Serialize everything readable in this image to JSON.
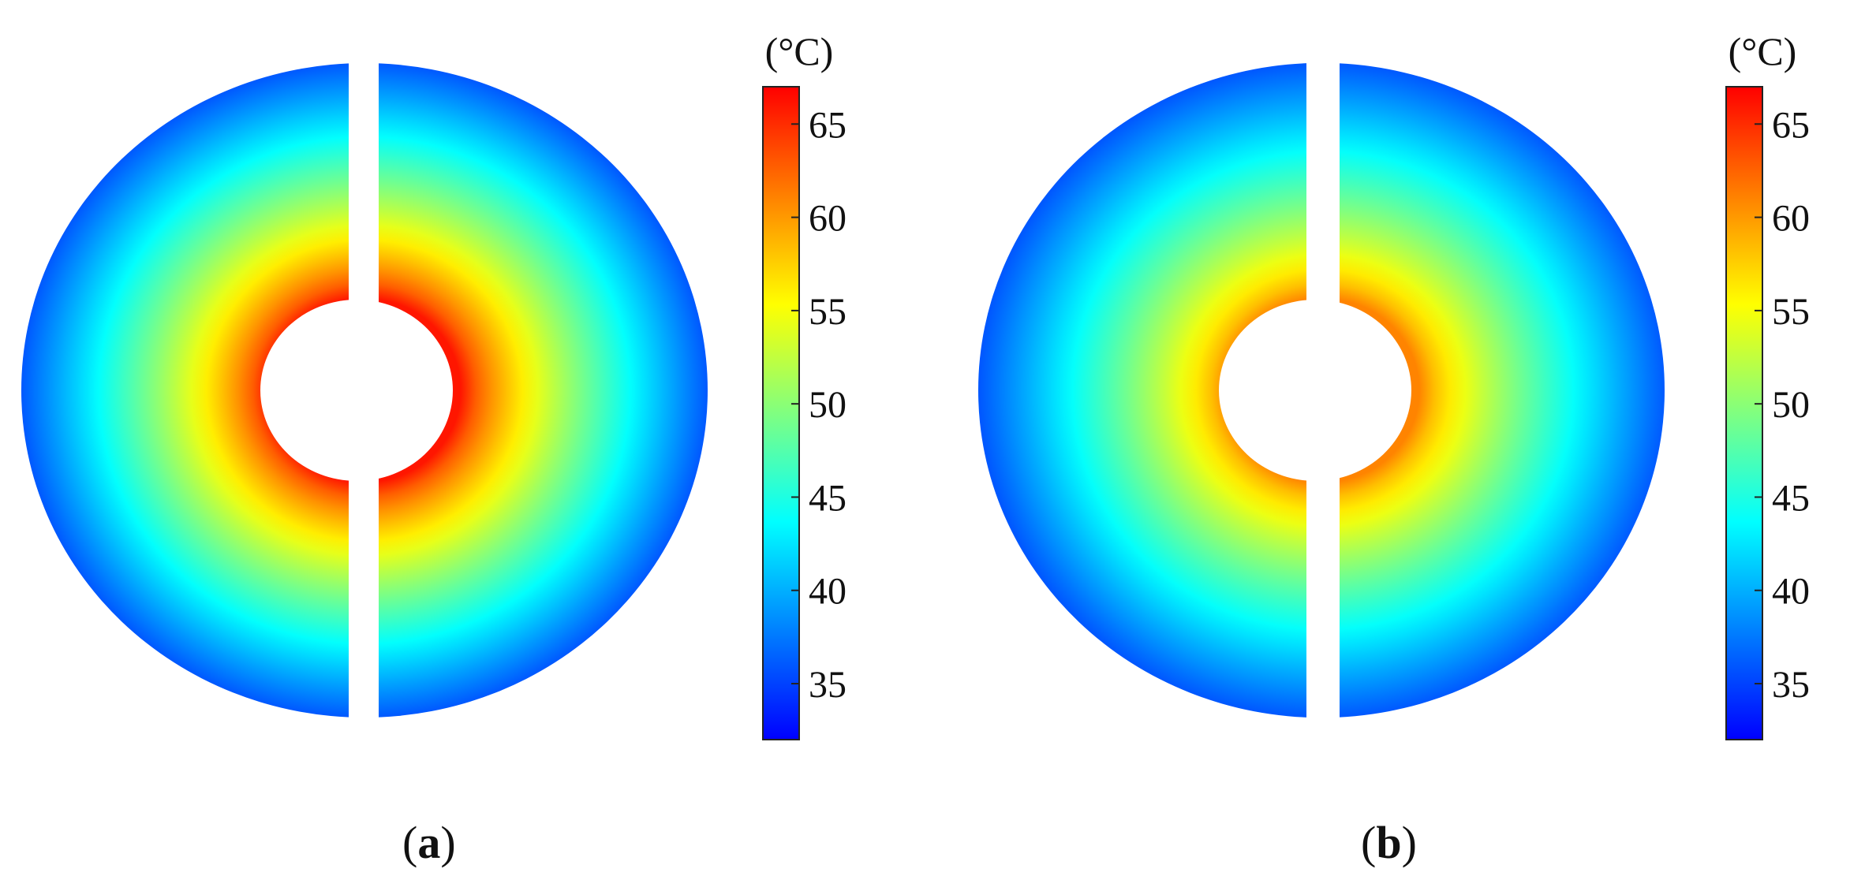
{
  "figure": {
    "colormap": [
      "#0000ff",
      "#0080ff",
      "#00ffff",
      "#80ff80",
      "#ffff00",
      "#ff8000",
      "#ff0000"
    ],
    "panels": [
      {
        "id": "a",
        "label_open": "(",
        "label_letter": "a",
        "label_close": ")",
        "inner_temperature": 66,
        "outer_temperature": 36,
        "colorbar": {
          "unit": "(°C)",
          "min": 32,
          "max": 67,
          "ticks": [
            "35",
            "40",
            "45",
            "50",
            "55",
            "60",
            "65"
          ]
        }
      },
      {
        "id": "b",
        "label_open": "(",
        "label_letter": "b",
        "label_close": ")",
        "inner_temperature": 61,
        "outer_temperature": 36,
        "colorbar": {
          "unit": "(°C)",
          "min": 32,
          "max": 67,
          "ticks": [
            "35",
            "40",
            "45",
            "50",
            "55",
            "60",
            "65"
          ]
        }
      }
    ]
  }
}
